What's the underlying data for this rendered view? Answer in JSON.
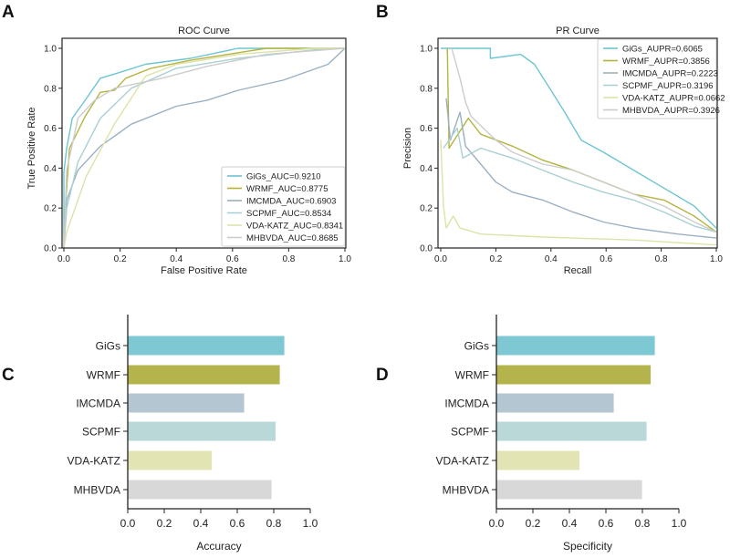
{
  "panel_letters": [
    "A",
    "B",
    "C",
    "D"
  ],
  "chart_data": [
    {
      "type": "line",
      "panel": "A",
      "title": "ROC Curve",
      "xlabel": "False Positive Rate",
      "ylabel": "True Positive Rate",
      "xlim": [
        0,
        1.0
      ],
      "ylim": [
        0,
        1.05
      ],
      "xticks": [
        "0.0",
        "0.2",
        "0.4",
        "0.6",
        "0.8",
        "1.0"
      ],
      "yticks": [
        "0.0",
        "0.2",
        "0.4",
        "0.6",
        "0.8",
        "1.0"
      ],
      "legend_position": "bottom-right",
      "series": [
        {
          "name": "GiGs_AUC=0.9210",
          "color": "#6cc5d2",
          "points": [
            [
              0,
              0
            ],
            [
              0,
              0.38
            ],
            [
              0.01,
              0.5
            ],
            [
              0.03,
              0.65
            ],
            [
              0.076,
              0.74
            ],
            [
              0.13,
              0.85
            ],
            [
              0.2,
              0.88
            ],
            [
              0.29,
              0.92
            ],
            [
              0.45,
              0.95
            ],
            [
              0.62,
              1.0
            ],
            [
              1,
              1
            ]
          ]
        },
        {
          "name": "WRMF_AUC=0.8775",
          "color": "#b5b43f",
          "points": [
            [
              0,
              0
            ],
            [
              0.005,
              0.2
            ],
            [
              0.02,
              0.5
            ],
            [
              0.076,
              0.66
            ],
            [
              0.13,
              0.78
            ],
            [
              0.18,
              0.79
            ],
            [
              0.22,
              0.85
            ],
            [
              0.31,
              0.9
            ],
            [
              0.45,
              0.94
            ],
            [
              0.72,
              1.0
            ],
            [
              1,
              1
            ]
          ]
        },
        {
          "name": "IMCMDA_AUC=0.6903",
          "color": "#9ab0c2",
          "points": [
            [
              0,
              0
            ],
            [
              0.01,
              0.24
            ],
            [
              0.05,
              0.39
            ],
            [
              0.13,
              0.51
            ],
            [
              0.24,
              0.62
            ],
            [
              0.4,
              0.71
            ],
            [
              0.51,
              0.74
            ],
            [
              0.62,
              0.79
            ],
            [
              0.78,
              0.84
            ],
            [
              0.94,
              0.92
            ],
            [
              1,
              1
            ]
          ]
        },
        {
          "name": "SCPMF_AUC=0.8534",
          "color": "#a9d0d2",
          "points": [
            [
              0,
              0
            ],
            [
              0.01,
              0.2
            ],
            [
              0.05,
              0.43
            ],
            [
              0.13,
              0.65
            ],
            [
              0.24,
              0.8
            ],
            [
              0.4,
              0.9
            ],
            [
              0.62,
              0.95
            ],
            [
              0.94,
              1.0
            ],
            [
              1,
              1
            ]
          ]
        },
        {
          "name": "VDA-KATZ_AUC=0.8341",
          "color": "#dde3a8",
          "points": [
            [
              0,
              0
            ],
            [
              0.01,
              0.08
            ],
            [
              0.08,
              0.36
            ],
            [
              0.18,
              0.62
            ],
            [
              0.29,
              0.86
            ],
            [
              0.4,
              0.92
            ],
            [
              0.62,
              0.97
            ],
            [
              0.89,
              1.0
            ],
            [
              1,
              1
            ]
          ]
        },
        {
          "name": "MHBVDA_AUC=0.8685",
          "color": "#cccccc",
          "points": [
            [
              0,
              0
            ],
            [
              0.01,
              0.39
            ],
            [
              0.05,
              0.65
            ],
            [
              0.11,
              0.74
            ],
            [
              0.18,
              0.8
            ],
            [
              0.35,
              0.85
            ],
            [
              0.51,
              0.91
            ],
            [
              0.72,
              0.97
            ],
            [
              1,
              1
            ]
          ]
        }
      ]
    },
    {
      "type": "line",
      "panel": "B",
      "title": "PR Curve",
      "xlabel": "Recall",
      "ylabel": "Precision",
      "xlim": [
        0,
        1.0
      ],
      "ylim": [
        0,
        1.05
      ],
      "xticks": [
        "0.0",
        "0.2",
        "0.4",
        "0.6",
        "0.8",
        "1.0"
      ],
      "yticks": [
        "0.0",
        "0.2",
        "0.4",
        "0.6",
        "0.8",
        "1.0"
      ],
      "legend_position": "top-right",
      "series": [
        {
          "name": "GiGs_AUPR=0.6065",
          "color": "#6cc5d2",
          "points": [
            [
              0,
              1
            ],
            [
              0.18,
              1
            ],
            [
              0.18,
              0.95
            ],
            [
              0.29,
              0.97
            ],
            [
              0.34,
              0.92
            ],
            [
              0.4,
              0.79
            ],
            [
              0.45,
              0.68
            ],
            [
              0.51,
              0.54
            ],
            [
              0.59,
              0.48
            ],
            [
              0.7,
              0.39
            ],
            [
              0.81,
              0.3
            ],
            [
              0.92,
              0.21
            ],
            [
              1,
              0.1
            ]
          ]
        },
        {
          "name": "WRMF_AUPR=0.3856",
          "color": "#b5b43f",
          "points": [
            [
              0.024,
              1
            ],
            [
              0.03,
              0.5
            ],
            [
              0.1,
              0.65
            ],
            [
              0.145,
              0.57
            ],
            [
              0.26,
              0.51
            ],
            [
              0.37,
              0.44
            ],
            [
              0.48,
              0.39
            ],
            [
              0.59,
              0.33
            ],
            [
              0.7,
              0.27
            ],
            [
              0.81,
              0.24
            ],
            [
              0.92,
              0.16
            ],
            [
              1,
              0.08
            ]
          ]
        },
        {
          "name": "IMCMDA_AUPR=0.2223",
          "color": "#9ab0c2",
          "points": [
            [
              0.02,
              0.75
            ],
            [
              0.035,
              0.54
            ],
            [
              0.07,
              0.68
            ],
            [
              0.09,
              0.51
            ],
            [
              0.145,
              0.42
            ],
            [
              0.2,
              0.33
            ],
            [
              0.26,
              0.28
            ],
            [
              0.37,
              0.24
            ],
            [
              0.48,
              0.18
            ],
            [
              0.59,
              0.13
            ],
            [
              0.7,
              0.1
            ],
            [
              0.86,
              0.07
            ],
            [
              1,
              0.05
            ]
          ]
        },
        {
          "name": "SCPMF_AUPR=0.3196",
          "color": "#a9d0d2",
          "points": [
            [
              0.01,
              0.5
            ],
            [
              0.06,
              0.6
            ],
            [
              0.08,
              0.45
            ],
            [
              0.145,
              0.5
            ],
            [
              0.26,
              0.45
            ],
            [
              0.37,
              0.39
            ],
            [
              0.48,
              0.33
            ],
            [
              0.59,
              0.28
            ],
            [
              0.7,
              0.24
            ],
            [
              0.81,
              0.18
            ],
            [
              0.92,
              0.11
            ],
            [
              1,
              0.08
            ]
          ]
        },
        {
          "name": "VDA-KATZ_AUPR=0.0662",
          "color": "#dde3a8",
          "points": [
            [
              0,
              0.54
            ],
            [
              0.01,
              0.21
            ],
            [
              0.02,
              0.1
            ],
            [
              0.045,
              0.16
            ],
            [
              0.07,
              0.1
            ],
            [
              0.145,
              0.07
            ],
            [
              0.37,
              0.055
            ],
            [
              0.7,
              0.04
            ],
            [
              1,
              0.015
            ]
          ]
        },
        {
          "name": "MHBVDA_AUPR=0.3926",
          "color": "#cccccc",
          "points": [
            [
              0.04,
              1
            ],
            [
              0.07,
              0.85
            ],
            [
              0.09,
              0.73
            ],
            [
              0.11,
              0.66
            ],
            [
              0.2,
              0.54
            ],
            [
              0.26,
              0.48
            ],
            [
              0.37,
              0.42
            ],
            [
              0.48,
              0.39
            ],
            [
              0.59,
              0.33
            ],
            [
              0.7,
              0.27
            ],
            [
              0.81,
              0.21
            ],
            [
              0.92,
              0.13
            ],
            [
              1,
              0.08
            ]
          ]
        }
      ]
    },
    {
      "type": "bar",
      "panel": "C",
      "orientation": "horizontal",
      "xlabel": "Accuracy",
      "xlim": [
        0,
        1.0
      ],
      "xticks": [
        "0.0",
        "0.2",
        "0.4",
        "0.6",
        "0.8",
        "1.0"
      ],
      "categories": [
        "GiGs",
        "WRMF",
        "IMCMDA",
        "SCPMF",
        "VDA-KATZ",
        "MHBVDA"
      ],
      "values": [
        0.858,
        0.833,
        0.638,
        0.81,
        0.46,
        0.788
      ],
      "colors": [
        "#7ec8d3",
        "#b5b44c",
        "#b4c6d1",
        "#bad8d7",
        "#e2e4b4",
        "#d8d8d8"
      ]
    },
    {
      "type": "bar",
      "panel": "D",
      "orientation": "horizontal",
      "xlabel": "Specificity",
      "xlim": [
        0,
        1.0
      ],
      "xticks": [
        "0.0",
        "0.2",
        "0.4",
        "0.6",
        "0.8",
        "1.0"
      ],
      "categories": [
        "GiGs",
        "WRMF",
        "IMCMDA",
        "SCPMF",
        "VDA-KATZ",
        "MHBVDA"
      ],
      "values": [
        0.868,
        0.845,
        0.643,
        0.823,
        0.455,
        0.798
      ],
      "colors": [
        "#7ec8d3",
        "#b5b44c",
        "#b4c6d1",
        "#bad8d7",
        "#e2e4b4",
        "#d8d8d8"
      ]
    }
  ]
}
